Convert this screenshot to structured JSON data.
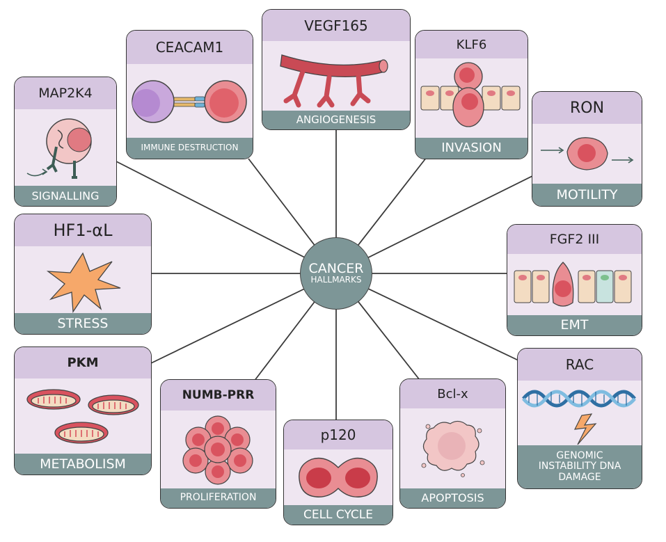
{
  "hub": {
    "line1": "CANCER",
    "line2": "HALLMARKS"
  },
  "cards": {
    "map2k4": {
      "gene": "MAP2K4",
      "hallmark": "SIGNALLING"
    },
    "ceacam1": {
      "gene": "CEACAM1",
      "hallmark": "IMMUNE DESTRUCTION"
    },
    "vegf165": {
      "gene": "VEGF165",
      "hallmark": "ANGIOGENESIS"
    },
    "klf6": {
      "gene": "KLF6",
      "hallmark": "INVASION"
    },
    "ron": {
      "gene": "RON",
      "hallmark": "MOTILITY"
    },
    "hf1": {
      "gene": "HF1-αL",
      "hallmark": "STRESS"
    },
    "fgf2": {
      "gene": "FGF2 III",
      "hallmark": "EMT"
    },
    "pkm": {
      "gene": "PKM",
      "hallmark": "METABOLISM"
    },
    "numb": {
      "gene": "NUMB-PRR",
      "hallmark": "PROLIFERATION"
    },
    "p120": {
      "gene": "p120",
      "hallmark": "CELL CYCLE"
    },
    "bclx": {
      "gene": "Bcl-x",
      "hallmark": "APOPTOSIS"
    },
    "rac": {
      "gene": "RAC",
      "hallmark": "GENOMIC INSTABILITY DNA DAMAGE"
    }
  },
  "colors": {
    "card_body": "#efe6f1",
    "card_header": "#d6c6e0",
    "card_footer": "#7d9697",
    "hub": "#7d9697",
    "cell": "#d9535f",
    "star": "#f6a86a",
    "dna_blue": "#5a9ccc"
  },
  "icons": [
    "immune-cell-icon",
    "blood-vessel-icon",
    "invasive-cell-icon",
    "migrating-cell-icon",
    "stress-star-icon",
    "emt-epithelium-icon",
    "mitochondria-icon",
    "cell-cluster-icon",
    "dividing-cell-icon",
    "apoptotic-cell-icon",
    "dna-damage-icon",
    "receptor-signalling-icon"
  ]
}
